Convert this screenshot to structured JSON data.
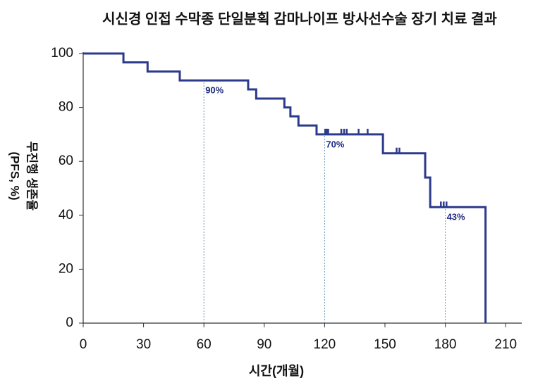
{
  "chart_data": {
    "type": "step",
    "title": "시신경 인접 수막종 단일분획 감마나이프 방사선수술 장기 치료 결과",
    "xlabel": "시간(개월)",
    "ylabel": [
      "무진행 생존율",
      "(PFS, %)"
    ],
    "color": "#2b3a8c",
    "x": [
      0,
      20,
      32,
      48,
      82,
      86,
      100,
      103,
      107,
      116,
      149,
      170,
      172.5,
      200
    ],
    "values": [
      100,
      96.7,
      93.3,
      90,
      86.7,
      83.3,
      80,
      76.7,
      73.3,
      70,
      63,
      54,
      43,
      0
    ],
    "censored": {
      "x": [
        120.3,
        121,
        121.8,
        128.3,
        129.7,
        131,
        136.9,
        141.4,
        155.8,
        157.2,
        177.8,
        179.2,
        180.6
      ],
      "values": [
        70,
        70,
        70,
        70,
        70,
        70,
        70,
        70,
        63,
        63,
        43,
        43,
        43
      ]
    },
    "annotations": [
      {
        "x": 60,
        "y": 90,
        "label": "90%"
      },
      {
        "x": 120,
        "y": 70,
        "label": "70%"
      },
      {
        "x": 180,
        "y": 43,
        "label": "43%"
      }
    ],
    "xlim": [
      0,
      218
    ],
    "ylim": [
      0,
      100
    ],
    "xticks": [
      0,
      30,
      60,
      90,
      120,
      150,
      180,
      210
    ],
    "yticks": [
      0,
      20,
      40,
      60,
      80,
      100
    ]
  }
}
